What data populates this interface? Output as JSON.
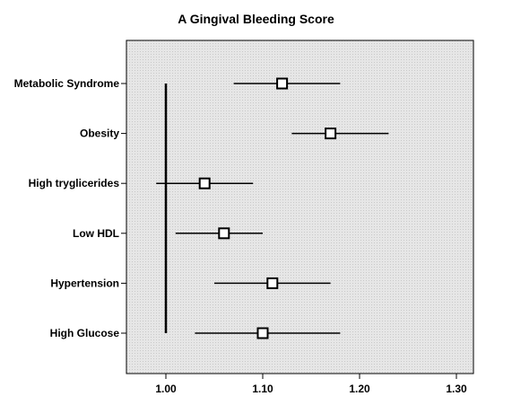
{
  "chart_data": {
    "type": "forest",
    "title": "A  Gingival Bleeding Score",
    "xlabel": "",
    "ylabel": "",
    "reference_line": 1.0,
    "xlim": [
      0.96,
      1.32
    ],
    "x_ticks": [
      {
        "value": 1.0,
        "label": "1.00"
      },
      {
        "value": 1.1,
        "label": "1.10"
      },
      {
        "value": 1.2,
        "label": "1.20"
      },
      {
        "value": 1.3,
        "label": "1.30"
      }
    ],
    "rows": [
      {
        "label": "Metabolic Syndrome",
        "estimate": 1.12,
        "lower": 1.07,
        "upper": 1.18
      },
      {
        "label": "Obesity",
        "estimate": 1.17,
        "lower": 1.13,
        "upper": 1.23
      },
      {
        "label": "High tryglicerides",
        "estimate": 1.04,
        "lower": 0.99,
        "upper": 1.09
      },
      {
        "label": "Low HDL",
        "estimate": 1.06,
        "lower": 1.01,
        "upper": 1.1
      },
      {
        "label": "Hypertension",
        "estimate": 1.11,
        "lower": 1.05,
        "upper": 1.17
      },
      {
        "label": "High Glucose",
        "estimate": 1.1,
        "lower": 1.03,
        "upper": 1.18
      }
    ],
    "grid": false,
    "colors": {
      "plot_background": "#e8e8e8",
      "marker_fill": "#ffffff",
      "line": "#000000"
    }
  }
}
